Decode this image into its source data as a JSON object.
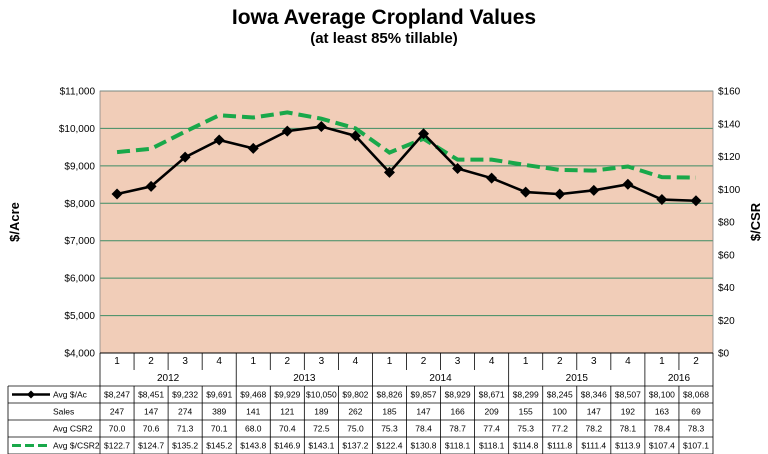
{
  "title": "Iowa Average Cropland Values",
  "subtitle": "(at least 85% tillable)",
  "colors": {
    "plot_background": "#f1cdb8",
    "gridline": "#3d8d64",
    "avg_acre_line": "#000000",
    "avg_csr_line": "#19a84a"
  },
  "chart_data": {
    "type": "line",
    "title": "Iowa Average Cropland Values",
    "subtitle": "(at least 85% tillable)",
    "xlabel": "",
    "ylabel": "$/Acre",
    "y2label": "$/CSR",
    "ylim": [
      4000,
      11000
    ],
    "y2lim": [
      0,
      160
    ],
    "y_ticks": [
      "$4,000",
      "$5,000",
      "$6,000",
      "$7,000",
      "$8,000",
      "$9,000",
      "$10,000",
      "$11,000"
    ],
    "y2_ticks": [
      "$0",
      "$20",
      "$40",
      "$60",
      "$80",
      "$100",
      "$120",
      "$140",
      "$160"
    ],
    "grid": true,
    "legend": "table-rows",
    "quarters": [
      "1",
      "2",
      "3",
      "4",
      "1",
      "2",
      "3",
      "4",
      "1",
      "2",
      "3",
      "4",
      "1",
      "2",
      "3",
      "4",
      "1",
      "2"
    ],
    "years": [
      {
        "label": "2012",
        "span": 4
      },
      {
        "label": "2013",
        "span": 4
      },
      {
        "label": "2014",
        "span": 4
      },
      {
        "label": "2015",
        "span": 4
      },
      {
        "label": "2016",
        "span": 2
      }
    ],
    "series": [
      {
        "name": "Avg $/Ac",
        "axis": "left",
        "style": "solid-diamond",
        "values": [
          8247,
          8451,
          9232,
          9691,
          9468,
          9929,
          10050,
          9802,
          8826,
          9857,
          8929,
          8671,
          8299,
          8245,
          8346,
          8507,
          8100,
          8068
        ],
        "labels": [
          "$8,247",
          "$8,451",
          "$9,232",
          "$9,691",
          "$9,468",
          "$9,929",
          "$10,050",
          "$9,802",
          "$8,826",
          "$9,857",
          "$8,929",
          "$8,671",
          "$8,299",
          "$8,245",
          "$8,346",
          "$8,507",
          "$8,100",
          "$8,068"
        ]
      },
      {
        "name": "Sales",
        "axis": "none",
        "values": [
          247,
          147,
          274,
          389,
          141,
          121,
          189,
          262,
          185,
          147,
          166,
          209,
          155,
          100,
          147,
          192,
          163,
          69
        ],
        "labels": [
          "247",
          "147",
          "274",
          "389",
          "141",
          "121",
          "189",
          "262",
          "185",
          "147",
          "166",
          "209",
          "155",
          "100",
          "147",
          "192",
          "163",
          "69"
        ]
      },
      {
        "name": "Avg CSR2",
        "axis": "none",
        "values": [
          70.0,
          70.6,
          71.3,
          70.1,
          68.0,
          70.4,
          72.5,
          75.0,
          75.3,
          78.4,
          78.7,
          77.4,
          75.3,
          77.2,
          78.2,
          78.1,
          78.4,
          78.3
        ],
        "labels": [
          "70.0",
          "70.6",
          "71.3",
          "70.1",
          "68.0",
          "70.4",
          "72.5",
          "75.0",
          "75.3",
          "78.4",
          "78.7",
          "77.4",
          "75.3",
          "77.2",
          "78.2",
          "78.1",
          "78.4",
          "78.3"
        ]
      },
      {
        "name": "Avg $/CSR2",
        "axis": "right",
        "style": "dashed",
        "values": [
          122.7,
          124.7,
          135.2,
          145.2,
          143.8,
          146.9,
          143.1,
          137.2,
          122.4,
          130.8,
          118.1,
          118.1,
          114.8,
          111.8,
          111.4,
          113.9,
          107.4,
          107.1
        ],
        "labels": [
          "$122.7",
          "$124.7",
          "$135.2",
          "$145.2",
          "$143.8",
          "$146.9",
          "$143.1",
          "$137.2",
          "$122.4",
          "$130.8",
          "$118.1",
          "$118.1",
          "$114.8",
          "$111.8",
          "$111.4",
          "$113.9",
          "$107.4",
          "$107.1"
        ]
      }
    ]
  }
}
